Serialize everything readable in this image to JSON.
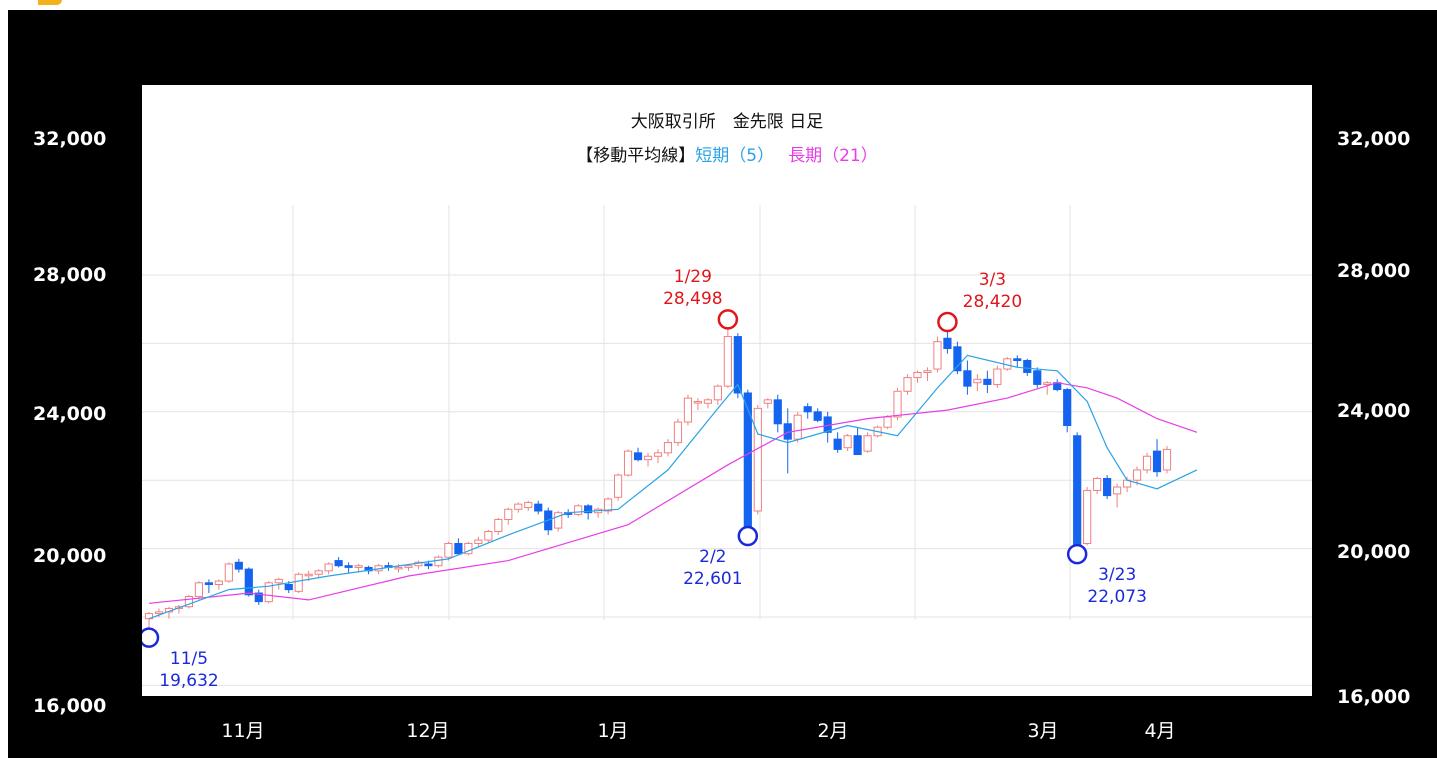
{
  "chart_data": {
    "type": "candlestick",
    "title": "大阪取引所　金先限 日足",
    "legend": {
      "prefix": "【移動平均線】",
      "short_label": "短期（5）",
      "long_label": "長期（21）",
      "short_color": "#29a3e6",
      "long_color": "#e83ce8"
    },
    "ylim": [
      16000,
      33500
    ],
    "y_ticks_left": [
      "32,000",
      "28,000",
      "24,000",
      "20,000",
      "16,000"
    ],
    "y_ticks_right": [
      "32,000",
      "28,000",
      "24,000",
      "20,000",
      "16,000"
    ],
    "x_ticks": [
      "11月",
      "12月",
      "1月",
      "2月",
      "3月",
      "4月"
    ],
    "up_color": "#f08080",
    "down_color": "#1464f0",
    "candles": [
      [
        19950,
        20150,
        19632,
        20100
      ],
      [
        20100,
        20250,
        20000,
        20150
      ],
      [
        20150,
        20300,
        19950,
        20250
      ],
      [
        20250,
        20350,
        20100,
        20300
      ],
      [
        20300,
        20650,
        20250,
        20600
      ],
      [
        20600,
        21050,
        20500,
        21000
      ],
      [
        21000,
        21100,
        20700,
        20950
      ],
      [
        20950,
        21100,
        20800,
        21050
      ],
      [
        21050,
        21600,
        21000,
        21550
      ],
      [
        21600,
        21700,
        21300,
        21400
      ],
      [
        21400,
        21450,
        20600,
        20650
      ],
      [
        20700,
        20800,
        20350,
        20450
      ],
      [
        20450,
        21050,
        20400,
        21000
      ],
      [
        21000,
        21150,
        20800,
        21100
      ],
      [
        20950,
        21050,
        20700,
        20800
      ],
      [
        20750,
        21300,
        20700,
        21250
      ],
      [
        21250,
        21350,
        21050,
        21250
      ],
      [
        21250,
        21400,
        21150,
        21350
      ],
      [
        21350,
        21600,
        21250,
        21550
      ],
      [
        21650,
        21750,
        21450,
        21500
      ],
      [
        21500,
        21600,
        21300,
        21450
      ],
      [
        21450,
        21550,
        21300,
        21500
      ],
      [
        21450,
        21500,
        21250,
        21350
      ],
      [
        21350,
        21550,
        21250,
        21500
      ],
      [
        21500,
        21600,
        21350,
        21450
      ],
      [
        21450,
        21550,
        21300,
        21450
      ],
      [
        21450,
        21550,
        21350,
        21500
      ],
      [
        21500,
        21650,
        21400,
        21600
      ],
      [
        21550,
        21650,
        21400,
        21500
      ],
      [
        21500,
        21800,
        21450,
        21750
      ],
      [
        21750,
        22200,
        21650,
        22150
      ],
      [
        22150,
        22300,
        21950,
        21850
      ],
      [
        21850,
        22200,
        21800,
        22150
      ],
      [
        22150,
        22350,
        22050,
        22250
      ],
      [
        22250,
        22550,
        22150,
        22500
      ],
      [
        22500,
        22900,
        22400,
        22850
      ],
      [
        22850,
        23200,
        22700,
        23150
      ],
      [
        23150,
        23350,
        23050,
        23300
      ],
      [
        23200,
        23400,
        23100,
        23350
      ],
      [
        23300,
        23400,
        23000,
        23100
      ],
      [
        23100,
        23200,
        22400,
        22550
      ],
      [
        22600,
        23100,
        22500,
        23050
      ],
      [
        23050,
        23150,
        22900,
        23000
      ],
      [
        23000,
        23300,
        22950,
        23250
      ],
      [
        23250,
        23300,
        22850,
        23050
      ],
      [
        23050,
        23200,
        22900,
        23150
      ],
      [
        23100,
        23500,
        23000,
        23450
      ],
      [
        23500,
        24200,
        23400,
        24150
      ],
      [
        24150,
        24900,
        24100,
        24850
      ],
      [
        24800,
        24950,
        24550,
        24600
      ],
      [
        24600,
        24800,
        24400,
        24700
      ],
      [
        24700,
        24900,
        24500,
        24800
      ],
      [
        24800,
        25200,
        24700,
        25100
      ],
      [
        25100,
        25800,
        25000,
        25700
      ],
      [
        25700,
        26500,
        25600,
        26400
      ],
      [
        26300,
        26400,
        26050,
        26300
      ],
      [
        26250,
        26400,
        26100,
        26350
      ],
      [
        26350,
        26800,
        26200,
        26750
      ],
      [
        26750,
        28498,
        26700,
        28200
      ],
      [
        28200,
        28300,
        26400,
        26550
      ],
      [
        26550,
        26650,
        22601,
        22650
      ],
      [
        23100,
        26200,
        23000,
        26100
      ],
      [
        26250,
        26400,
        26100,
        26350
      ],
      [
        26350,
        26500,
        25400,
        25650
      ],
      [
        25650,
        26100,
        24200,
        25200
      ],
      [
        25200,
        26000,
        25100,
        25900
      ],
      [
        26150,
        26250,
        25800,
        26000
      ],
      [
        26000,
        26100,
        25700,
        25750
      ],
      [
        25850,
        26000,
        25100,
        25400
      ],
      [
        25200,
        25400,
        24800,
        24900
      ],
      [
        24950,
        25350,
        24850,
        25300
      ],
      [
        25300,
        25550,
        24850,
        24750
      ],
      [
        24850,
        25400,
        24800,
        25300
      ],
      [
        25300,
        25600,
        25250,
        25550
      ],
      [
        25550,
        25900,
        25500,
        25850
      ],
      [
        25850,
        26700,
        25750,
        26600
      ],
      [
        26600,
        27100,
        26500,
        27000
      ],
      [
        27000,
        27200,
        26850,
        27150
      ],
      [
        27150,
        27300,
        26900,
        27200
      ],
      [
        27250,
        28200,
        27150,
        28050
      ],
      [
        28150,
        28420,
        27700,
        27850
      ],
      [
        27900,
        28050,
        27100,
        27200
      ],
      [
        27200,
        27500,
        26500,
        26750
      ],
      [
        26850,
        27100,
        26600,
        26950
      ],
      [
        26950,
        27200,
        26550,
        26800
      ],
      [
        26800,
        27350,
        26700,
        27250
      ],
      [
        27250,
        27600,
        27200,
        27550
      ],
      [
        27550,
        27650,
        27300,
        27500
      ],
      [
        27500,
        27550,
        27050,
        27150
      ],
      [
        27200,
        27300,
        26700,
        26800
      ],
      [
        26800,
        26900,
        26500,
        26850
      ],
      [
        26850,
        26950,
        26600,
        26650
      ],
      [
        26650,
        26700,
        25400,
        25600
      ],
      [
        25300,
        25400,
        22073,
        22100
      ],
      [
        22150,
        23800,
        22100,
        23700
      ],
      [
        23700,
        24100,
        23600,
        24050
      ],
      [
        24050,
        24150,
        23450,
        23550
      ],
      [
        23600,
        23900,
        23200,
        23800
      ],
      [
        23800,
        24100,
        23650,
        24000
      ],
      [
        24000,
        24400,
        23850,
        24300
      ],
      [
        24300,
        24800,
        24200,
        24700
      ],
      [
        24850,
        25200,
        24100,
        24250
      ],
      [
        24300,
        25000,
        24200,
        24900
      ]
    ],
    "ma_short": [
      [
        0,
        19950
      ],
      [
        8,
        20800
      ],
      [
        12,
        20900
      ],
      [
        18,
        21200
      ],
      [
        24,
        21450
      ],
      [
        30,
        21700
      ],
      [
        36,
        22400
      ],
      [
        42,
        23050
      ],
      [
        47,
        23150
      ],
      [
        52,
        24300
      ],
      [
        57,
        26100
      ],
      [
        59,
        26800
      ],
      [
        61,
        25350
      ],
      [
        64,
        25100
      ],
      [
        70,
        25600
      ],
      [
        75,
        25300
      ],
      [
        79,
        26700
      ],
      [
        82,
        27650
      ],
      [
        87,
        27300
      ],
      [
        91,
        27200
      ],
      [
        94,
        26300
      ],
      [
        96,
        24950
      ],
      [
        98,
        24000
      ],
      [
        101,
        23750
      ],
      [
        105,
        24300
      ]
    ],
    "ma_long": [
      [
        0,
        20400
      ],
      [
        10,
        20700
      ],
      [
        16,
        20500
      ],
      [
        26,
        21200
      ],
      [
        36,
        21650
      ],
      [
        48,
        22700
      ],
      [
        58,
        24450
      ],
      [
        64,
        25400
      ],
      [
        72,
        25800
      ],
      [
        80,
        26050
      ],
      [
        86,
        26400
      ],
      [
        91,
        26850
      ],
      [
        94,
        26700
      ],
      [
        97,
        26400
      ],
      [
        101,
        25800
      ],
      [
        105,
        25400
      ]
    ],
    "annotations": [
      {
        "label": "1/29",
        "value": "28,498",
        "color": "red",
        "idx": 58,
        "y": 28498,
        "pos": "above"
      },
      {
        "label": "3/3",
        "value": "28,420",
        "color": "red",
        "idx": 80,
        "y": 28420,
        "pos": "above"
      },
      {
        "label": "2/2",
        "value": "22,601",
        "color": "blue",
        "idx": 60,
        "y": 22601,
        "pos": "below"
      },
      {
        "label": "3/23",
        "value": "22,073",
        "color": "blue",
        "idx": 93,
        "y": 22073,
        "pos": "below"
      },
      {
        "label": "11/5",
        "value": "19,632",
        "color": "blue",
        "idx": 0,
        "y": 19632,
        "pos": "below"
      }
    ]
  }
}
